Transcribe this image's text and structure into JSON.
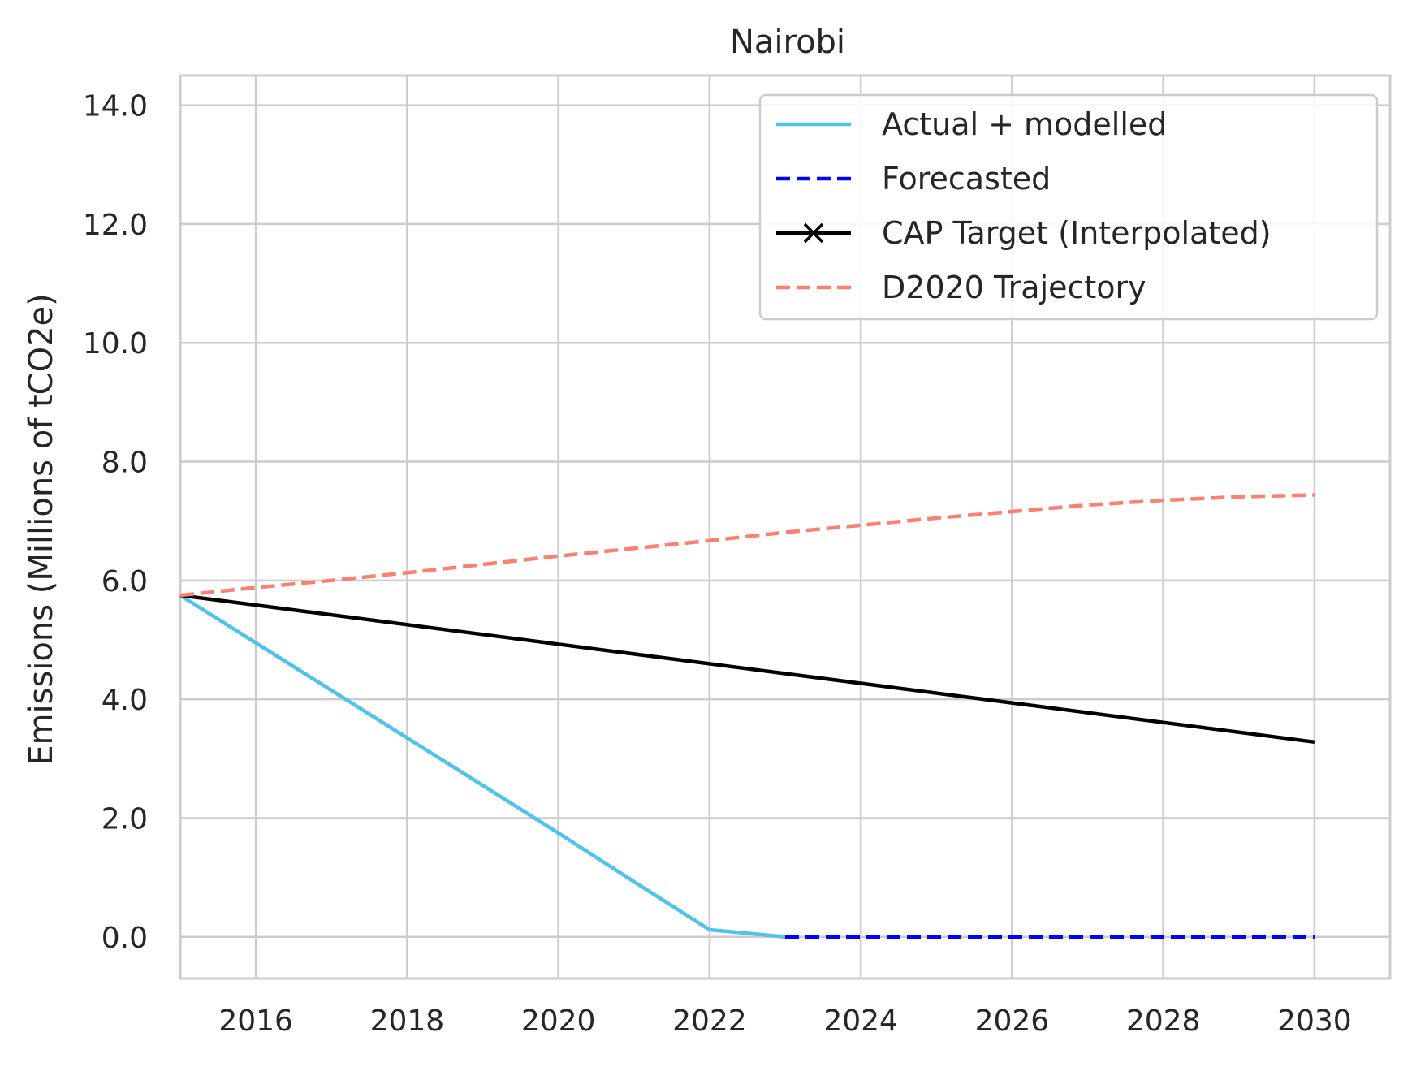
{
  "chart_data": {
    "type": "line",
    "title": "Nairobi",
    "xlabel": "",
    "ylabel": "Emissions (Millions of tCO2e)",
    "xlim": [
      2015,
      2031
    ],
    "ylim": [
      -0.7,
      14.5
    ],
    "x_ticks": [
      2016,
      2018,
      2020,
      2022,
      2024,
      2026,
      2028,
      2030
    ],
    "x_tick_labels": [
      "2016",
      "2018",
      "2020",
      "2022",
      "2024",
      "2026",
      "2028",
      "2030"
    ],
    "y_ticks": [
      0,
      2,
      4,
      6,
      8,
      10,
      12,
      14
    ],
    "y_tick_labels": [
      "0.0",
      "2.0",
      "4.0",
      "6.0",
      "8.0",
      "10.0",
      "12.0",
      "14.0"
    ],
    "grid": true,
    "legend_position": "top-right",
    "series": [
      {
        "name": "Actual + modelled",
        "color": "#4fc3ec",
        "style": "solid",
        "x": [
          2015,
          2016,
          2017,
          2018,
          2019,
          2020,
          2021,
          2022,
          2023
        ],
        "y": [
          5.75,
          4.95,
          4.15,
          3.35,
          2.55,
          1.75,
          0.93,
          0.12,
          0.0
        ]
      },
      {
        "name": "Forecasted",
        "color": "#0000ff",
        "style": "dashed",
        "x": [
          2023,
          2024,
          2025,
          2026,
          2027,
          2028,
          2029,
          2030
        ],
        "y": [
          0,
          0,
          0,
          0,
          0,
          0,
          0,
          0
        ]
      },
      {
        "name": "CAP Target (Interpolated)",
        "color": "#000000",
        "style": "solid",
        "marker": "x",
        "x": [
          2015,
          2030
        ],
        "y": [
          5.75,
          3.28
        ]
      },
      {
        "name": "D2020 Trajectory",
        "color": "#fa8072",
        "style": "dashed",
        "x": [
          2015,
          2016,
          2017,
          2018,
          2019,
          2020,
          2021,
          2022,
          2023,
          2024,
          2025,
          2026,
          2027,
          2028,
          2029,
          2030
        ],
        "y": [
          5.75,
          5.88,
          6.0,
          6.13,
          6.27,
          6.41,
          6.54,
          6.67,
          6.81,
          6.93,
          7.05,
          7.16,
          7.27,
          7.35,
          7.41,
          7.44
        ]
      }
    ]
  }
}
